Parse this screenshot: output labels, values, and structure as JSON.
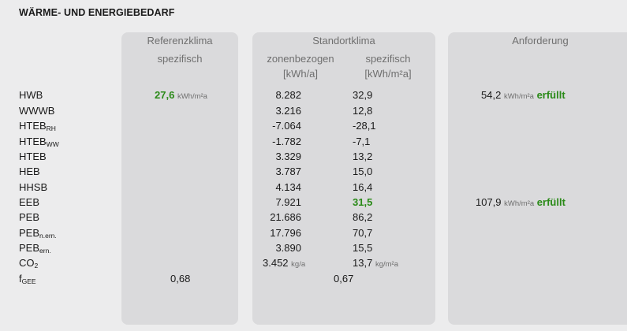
{
  "title": "WÄRME- UND ENERGIEBEDARF",
  "headers": {
    "ref_1": "Referenzklima",
    "ref_2": "spezifisch",
    "std_1": "Standortklima",
    "std_zon": "zonenbezogen",
    "std_zon_unit": "[kWh/a]",
    "std_spez": "spezifisch",
    "std_spez_unit": "[kWh/m²a]",
    "anf": "Anforderung"
  },
  "rows": [
    {
      "label": "HWB",
      "sub": "",
      "ref": "27,6",
      "ref_unit": "kWh/m²a",
      "zon": "8.282",
      "spez": "32,9",
      "anf": "54,2",
      "anf_unit": "kWh/m²a",
      "status": "erfüllt"
    },
    {
      "label": "WWWB",
      "sub": "",
      "zon": "3.216",
      "spez": "12,8"
    },
    {
      "label": "HTEB",
      "sub": "RH",
      "zon": "-7.064",
      "spez": "-28,1"
    },
    {
      "label": "HTEB",
      "sub": "WW",
      "zon": "-1.782",
      "spez": "-7,1"
    },
    {
      "label": "HTEB",
      "sub": "",
      "zon": "3.329",
      "spez": "13,2"
    },
    {
      "label": "HEB",
      "sub": "",
      "zon": "3.787",
      "spez": "15,0"
    },
    {
      "label": "HHSB",
      "sub": "",
      "zon": "4.134",
      "spez": "16,4"
    },
    {
      "label": "EEB",
      "sub": "",
      "zon": "7.921",
      "spez": "31,5",
      "anf": "107,9",
      "anf_unit": "kWh/m²a",
      "status": "erfüllt"
    },
    {
      "label": "PEB",
      "sub": "",
      "zon": "21.686",
      "spez": "86,2"
    },
    {
      "label": "PEB",
      "sub": "n.ern.",
      "zon": "17.796",
      "spez": "70,7"
    },
    {
      "label": "PEB",
      "sub": "ern.",
      "zon": "3.890",
      "spez": "15,5"
    },
    {
      "label": "CO",
      "sub": "2",
      "zon": "3.452",
      "zon_unit": "kg/a",
      "spez": "13,7",
      "spez_unit": "kg/m²a"
    },
    {
      "label": "f",
      "sub": "GEE",
      "ref": "0,68",
      "std_combined": "0,67"
    }
  ]
}
